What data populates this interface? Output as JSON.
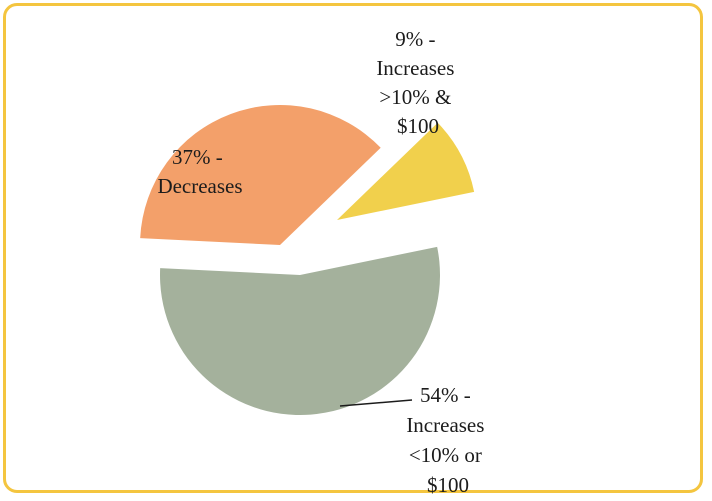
{
  "colors": {
    "decreases": "#f3a06a",
    "increases_over": "#f1d04c",
    "increases_under": "#a4b19c",
    "frame_border": "#f4c53f"
  },
  "chart_data": {
    "type": "pie",
    "title": "",
    "slices": [
      {
        "value": 9,
        "label_lines": [
          "9% -",
          "Increases",
          ">10% &",
          "$100"
        ]
      },
      {
        "value": 54,
        "label_lines": [
          "54% -",
          "Increases",
          "<10% or",
          "$100"
        ]
      },
      {
        "value": 37,
        "label_lines": [
          "37% -",
          "Decreases"
        ]
      }
    ]
  }
}
